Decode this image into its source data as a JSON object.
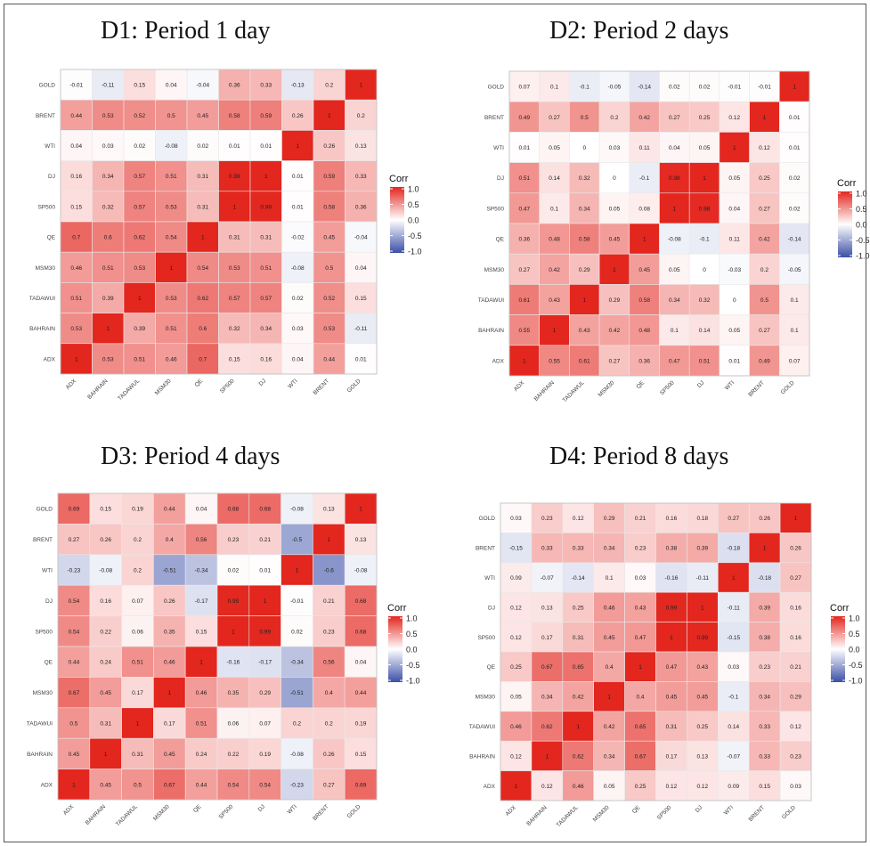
{
  "colors": {
    "pos": "#e3261e",
    "mid": "#ffffff",
    "neg": "#3b4fa6"
  },
  "chart_data": [
    {
      "type": "heatmap",
      "title": "D1: Period 1 day",
      "x_categories": [
        "ADX",
        "BAHRAIN",
        "TADAWUL",
        "MSM30",
        "QE",
        "SP500",
        "DJ",
        "WTI",
        "BRENT",
        "GOLD"
      ],
      "y_categories": [
        "GOLD",
        "BRENT",
        "WTI",
        "DJ",
        "SP500",
        "QE",
        "MSM30",
        "TADAWUI",
        "BAHRAIN",
        "ADX"
      ],
      "values": [
        [
          "-0.01",
          "-0.11",
          "0.15",
          "0.04",
          "-0.04",
          "0.36",
          "0.33",
          "-0.13",
          "0.2",
          "1"
        ],
        [
          "0.44",
          "0.53",
          "0.52",
          "0.5",
          "0.45",
          "0.58",
          "0.59",
          "0.26",
          "1",
          "0.2"
        ],
        [
          "0.04",
          "0.03",
          "0.02",
          "-0.08",
          "0.02",
          "0.01",
          "0.01",
          "1",
          "0.26",
          "0.13"
        ],
        [
          "0.16",
          "0.34",
          "0.57",
          "0.51",
          "0.31",
          "0.99",
          "1",
          "0.01",
          "0.59",
          "0.33"
        ],
        [
          "0.15",
          "0.32",
          "0.57",
          "0.53",
          "0.31",
          "1",
          "0.99",
          "0.01",
          "0.58",
          "0.36"
        ],
        [
          "0.7",
          "0.6",
          "0.62",
          "0.54",
          "1",
          "0.31",
          "0.31",
          "-0.02",
          "0.45",
          "-0.04"
        ],
        [
          "0.46",
          "0.51",
          "0.53",
          "1",
          "0.54",
          "0.53",
          "0.51",
          "-0.08",
          "0.5",
          "0.04"
        ],
        [
          "0.51",
          "0.39",
          "1",
          "0.53",
          "0.62",
          "0.57",
          "0.57",
          "0.02",
          "0.52",
          "0.15"
        ],
        [
          "0.53",
          "1",
          "0.39",
          "0.51",
          "0.6",
          "0.32",
          "0.34",
          "0.03",
          "0.53",
          "-0.11"
        ],
        [
          "1",
          "0.53",
          "0.51",
          "0.46",
          "0.7",
          "0.15",
          "0.16",
          "0.04",
          "0.44",
          "0.01"
        ]
      ],
      "legend_title": "Corr",
      "legend_ticks": [
        "1.0",
        "0.5",
        "0.0",
        "-0.5",
        "-1.0"
      ]
    },
    {
      "type": "heatmap",
      "title": "D2: Period 2 days",
      "x_categories": [
        "ADX",
        "BAHRAIN",
        "TADAWUL",
        "MSM30",
        "QE",
        "SP500",
        "DJ",
        "WTI",
        "BRENT",
        "GOLD"
      ],
      "y_categories": [
        "GOLD",
        "BRENT",
        "WTI",
        "DJ",
        "SP500",
        "QE",
        "MSM30",
        "TADAWUI",
        "BAHRAIN",
        "ADX"
      ],
      "values": [
        [
          "0.07",
          "0.1",
          "-0.1",
          "-0.05",
          "-0.14",
          "0.02",
          "0.02",
          "-0.01",
          "-0.01",
          "1"
        ],
        [
          "0.49",
          "0.27",
          "0.5",
          "0.2",
          "0.42",
          "0.27",
          "0.25",
          "0.12",
          "1",
          "0.01"
        ],
        [
          "0.01",
          "0.05",
          "0",
          "0.03",
          "0.11",
          "0.04",
          "0.05",
          "1",
          "0.12",
          "0.01"
        ],
        [
          "0.51",
          "0.14",
          "0.32",
          "0",
          "-0.1",
          "0.98",
          "1",
          "0.05",
          "0.25",
          "0.02"
        ],
        [
          "0.47",
          "0.1",
          "0.34",
          "0.05",
          "0.08",
          "1",
          "0.98",
          "0.04",
          "0.27",
          "0.02"
        ],
        [
          "0.36",
          "0.48",
          "0.58",
          "0.45",
          "1",
          "-0.08",
          "-0.1",
          "0.11",
          "0.42",
          "-0.14"
        ],
        [
          "0.27",
          "0.42",
          "0.29",
          "1",
          "0.45",
          "0.05",
          "0",
          "-0.03",
          "0.2",
          "-0.05"
        ],
        [
          "0.61",
          "0.43",
          "1",
          "0.29",
          "0.58",
          "0.34",
          "0.32",
          "0",
          "0.5",
          "0.1"
        ],
        [
          "0.55",
          "1",
          "0.43",
          "0.42",
          "0.48",
          "0.1",
          "0.14",
          "0.05",
          "0.27",
          "0.1"
        ],
        [
          "1",
          "0.55",
          "0.61",
          "0.27",
          "0.36",
          "0.47",
          "0.51",
          "0.01",
          "0.49",
          "0.07"
        ]
      ],
      "legend_title": "Corr",
      "legend_ticks": [
        "1.0",
        "0.5",
        "0.0",
        "-0.5",
        "-1.0"
      ]
    },
    {
      "type": "heatmap",
      "title": "D3: Period 4 days",
      "x_categories": [
        "ADX",
        "BAHRAIN",
        "TADAWUL",
        "MSM30",
        "QE",
        "SP500",
        "DJ",
        "WTI",
        "BRENT",
        "GOLD"
      ],
      "y_categories": [
        "GOLD",
        "BRENT",
        "WTI",
        "DJ",
        "SP500",
        "QE",
        "MSM30",
        "TADAWUI",
        "BAHRAIN",
        "ADX"
      ],
      "values": [
        [
          "0.69",
          "0.15",
          "0.19",
          "0.44",
          "0.04",
          "0.68",
          "0.68",
          "-0.08",
          "0.13",
          "1"
        ],
        [
          "0.27",
          "0.26",
          "0.2",
          "0.4",
          "0.56",
          "0.23",
          "0.21",
          "-0.5",
          "1",
          "0.13"
        ],
        [
          "-0.23",
          "-0.08",
          "0.2",
          "-0.51",
          "-0.34",
          "0.02",
          "0.01",
          "1",
          "-0.6",
          "-0.08"
        ],
        [
          "0.54",
          "0.16",
          "0.07",
          "0.26",
          "-0.17",
          "0.99",
          "1",
          "-0.01",
          "0.21",
          "0.68"
        ],
        [
          "0.54",
          "0.22",
          "0.06",
          "0.35",
          "0.15",
          "1",
          "0.99",
          "0.02",
          "0.23",
          "0.68"
        ],
        [
          "0.44",
          "0.24",
          "0.51",
          "0.46",
          "1",
          "-0.16",
          "-0.17",
          "-0.34",
          "0.56",
          "0.04"
        ],
        [
          "0.67",
          "0.45",
          "0.17",
          "1",
          "0.46",
          "0.35",
          "0.29",
          "-0.51",
          "0.4",
          "0.44"
        ],
        [
          "0.5",
          "0.31",
          "1",
          "0.17",
          "0.51",
          "0.06",
          "0.07",
          "0.2",
          "0.2",
          "0.19"
        ],
        [
          "0.45",
          "1",
          "0.31",
          "0.45",
          "0.24",
          "0.22",
          "0.19",
          "-0.08",
          "0.26",
          "0.15"
        ],
        [
          "1",
          "0.45",
          "0.5",
          "0.67",
          "0.44",
          "0.54",
          "0.54",
          "-0.23",
          "0.27",
          "0.69"
        ]
      ],
      "legend_title": "Corr",
      "legend_ticks": [
        "1.0",
        "0.5",
        "0.0",
        "-0.5",
        "-1.0"
      ]
    },
    {
      "type": "heatmap",
      "title": "D4: Period 8 days",
      "x_categories": [
        "ADX",
        "BAHRAIN",
        "TADAWUL",
        "MSM30",
        "QE",
        "SP500",
        "DJ",
        "WTI",
        "BRENT",
        "GOLD"
      ],
      "y_categories": [
        "GOLD",
        "BRENT",
        "WTI",
        "DJ",
        "SP500",
        "QE",
        "MSM30",
        "TADAWUI",
        "BAHRAIN",
        "ADX"
      ],
      "values": [
        [
          "0.03",
          "0.23",
          "0.12",
          "0.29",
          "0.21",
          "0.16",
          "0.18",
          "0.27",
          "0.26",
          "1"
        ],
        [
          "-0.15",
          "0.33",
          "0.33",
          "0.34",
          "0.23",
          "0.38",
          "0.39",
          "-0.18",
          "1",
          "0.26"
        ],
        [
          "0.09",
          "-0.07",
          "-0.14",
          "0.1",
          "0.03",
          "-0.16",
          "-0.11",
          "1",
          "-0.18",
          "0.27"
        ],
        [
          "0.12",
          "0.13",
          "0.25",
          "0.46",
          "0.43",
          "0.99",
          "1",
          "-0.11",
          "0.39",
          "0.16"
        ],
        [
          "0.12",
          "0.17",
          "0.31",
          "0.45",
          "0.47",
          "1",
          "0.99",
          "-0.15",
          "0.38",
          "0.16"
        ],
        [
          "0.25",
          "0.67",
          "0.65",
          "0.4",
          "1",
          "0.47",
          "0.43",
          "0.03",
          "0.23",
          "0.21"
        ],
        [
          "0.05",
          "0.34",
          "0.42",
          "1",
          "0.4",
          "0.45",
          "0.45",
          "-0.1",
          "0.34",
          "0.29"
        ],
        [
          "0.46",
          "0.62",
          "1",
          "0.42",
          "0.65",
          "0.31",
          "0.25",
          "0.14",
          "0.33",
          "0.12"
        ],
        [
          "0.12",
          "1",
          "0.62",
          "0.34",
          "0.67",
          "0.17",
          "0.13",
          "-0.07",
          "0.33",
          "0.23"
        ],
        [
          "1",
          "0.12",
          "0.46",
          "0.05",
          "0.25",
          "0.12",
          "0.12",
          "0.09",
          "0.15",
          "0.03"
        ]
      ],
      "legend_title": "Corr",
      "legend_ticks": [
        "1.0",
        "0.5",
        "0.0",
        "-0.5",
        "-1.0"
      ]
    }
  ]
}
